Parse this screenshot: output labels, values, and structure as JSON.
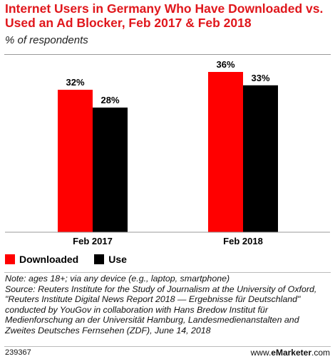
{
  "chart_data": {
    "type": "bar",
    "title": "Internet Users in Germany Who Have Downloaded vs. Used an Ad Blocker, Feb 2017 & Feb 2018",
    "subtitle": "% of respondents",
    "categories": [
      "Feb 2017",
      "Feb 2018"
    ],
    "series": [
      {
        "name": "Downloaded",
        "values": [
          32,
          36
        ],
        "labels": [
          "32%",
          "36%"
        ],
        "color": "#ff0000"
      },
      {
        "name": "Use",
        "values": [
          28,
          33
        ],
        "labels": [
          "28%",
          "33%"
        ],
        "color": "#000000"
      }
    ],
    "ylim": [
      0,
      40
    ],
    "grid": false,
    "legend": "bottom-left"
  },
  "title": "Internet Users in Germany Who Have Downloaded vs. Used an Ad Blocker, Feb 2017 & Feb 2018",
  "subtitle": "% of respondents",
  "legend": {
    "downloaded": "Downloaded",
    "use": "Use"
  },
  "notes": [
    "Note: ages 18+; via any device (e.g., laptop, smartphone)",
    "Source: Reuters Institute for the Study of Journalism at the University of Oxford, \"Reuters Institute Digital News Report 2018 — Ergebnisse für Deutschland\" conducted by YouGov in collaboration with Hans Bredow Institut für Medienforschung an der Universität Hamburg, Landesmedienanstalten and Zweites Deutsches Fernsehen (ZDF), June 14, 2018"
  ],
  "footer": {
    "id": "239367",
    "brand_prefix": "www.",
    "brand_bold": "eMarketer",
    "brand_suffix": ".com"
  }
}
